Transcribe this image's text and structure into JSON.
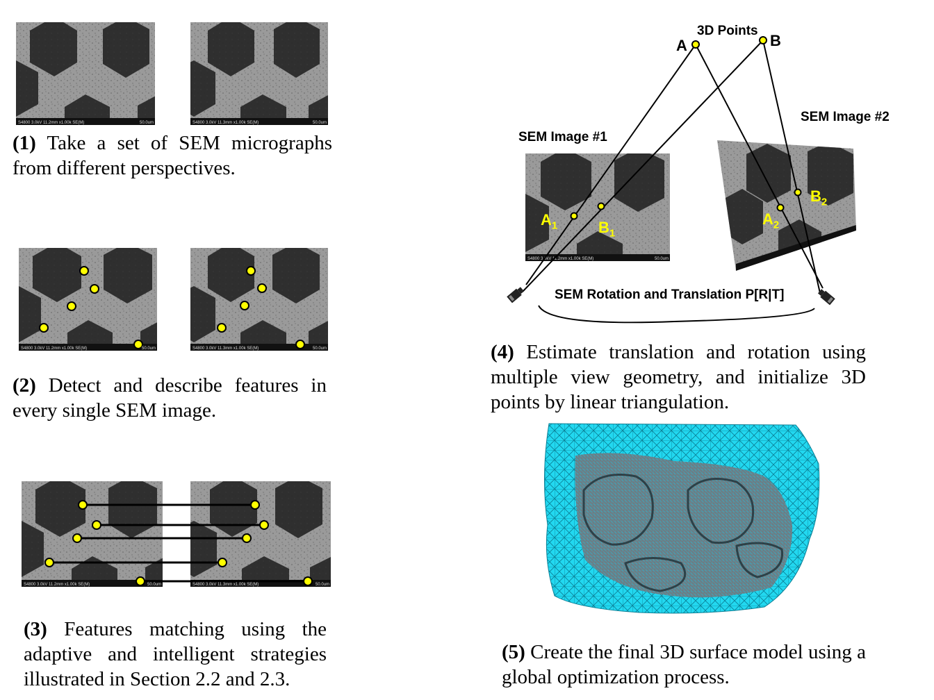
{
  "sem_info": {
    "left": "S4800 3.0kV 11.2mm x1.00k SE(M)",
    "right": "S4800 3.0kV 11.3mm x1.00k SE(M)",
    "scale": "50.0um"
  },
  "steps": [
    {
      "num": "(1)",
      "text": " Take a set of SEM micrographs from different perspectives."
    },
    {
      "num": "(2)",
      "text": " Detect and describe features in every single SEM image."
    },
    {
      "num": "(3)",
      "text": " Features matching using the adaptive and intelligent strategies illustrated in Section 2.2 and 2.3."
    },
    {
      "num": "(4)",
      "text": " Estimate translation and rotation using multiple view geometry, and initialize 3D points by linear triangulation."
    },
    {
      "num": "(5)",
      "text": " Create the final 3D surface model using a global optimization process."
    }
  ],
  "geometry": {
    "points_title": "3D Points",
    "point_a": "A",
    "point_b": "B",
    "image1_title": "SEM Image #1",
    "image2_title": "SEM Image #2",
    "a1": "A",
    "a1_sub": "1",
    "b1": "B",
    "b1_sub": "1",
    "a2": "A",
    "a2_sub": "2",
    "b2": "B",
    "b2_sub": "2",
    "motion": "SEM Rotation and Translation P[R|T]"
  },
  "colors": {
    "feature_point": "#ffff00",
    "mesh": "#22d8f0",
    "sem_background": "#8f8f8f"
  }
}
